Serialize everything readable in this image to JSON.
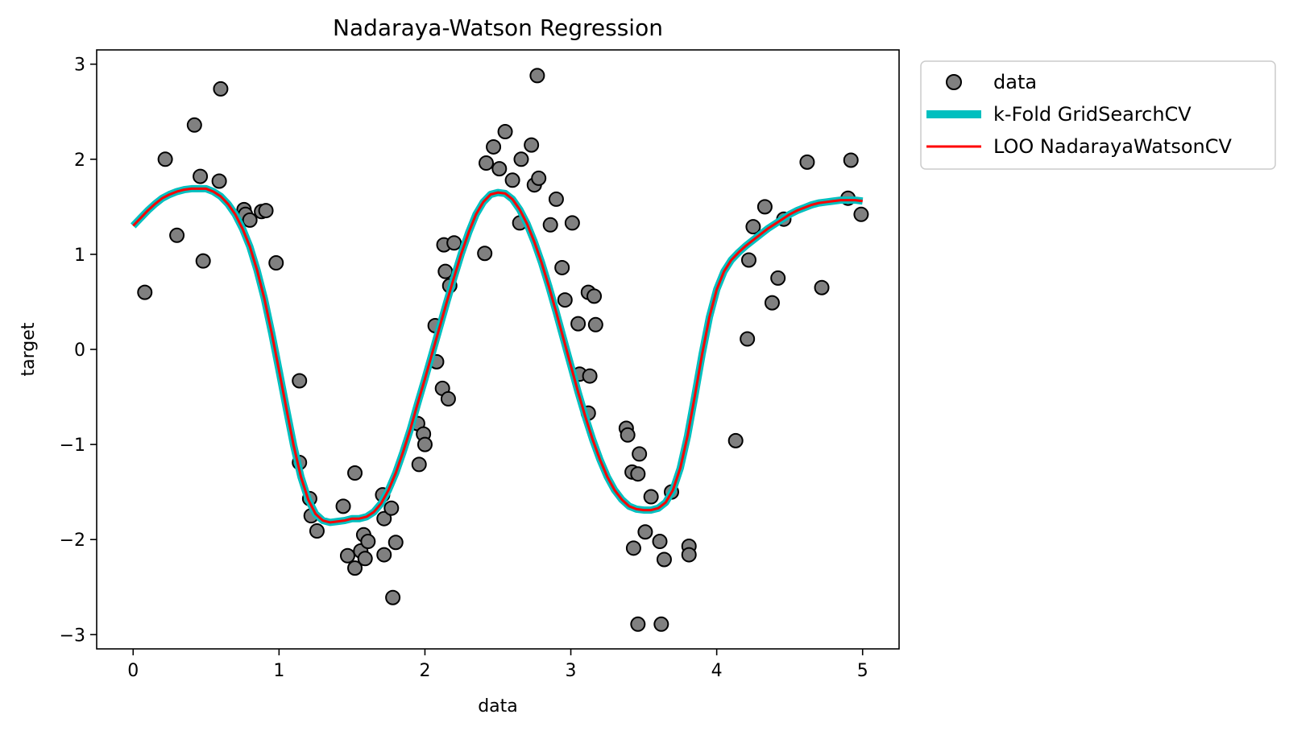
{
  "chart_data": {
    "type": "scatter",
    "title": "Nadaraya-Watson Regression",
    "xlabel": "data",
    "ylabel": "target",
    "xlim": [
      -0.25,
      5.25
    ],
    "ylim": [
      -3.15,
      3.15
    ],
    "xticks": [
      0,
      1,
      2,
      3,
      4,
      5
    ],
    "yticks": [
      -3,
      -2,
      -1,
      0,
      1,
      2,
      3
    ],
    "xtick_labels": [
      "0",
      "1",
      "2",
      "3",
      "4",
      "5"
    ],
    "ytick_labels": [
      "−3",
      "−2",
      "−1",
      "0",
      "1",
      "2",
      "3"
    ],
    "grid": false,
    "legend_placement": "outside-upper-right",
    "series": [
      {
        "name": "data",
        "kind": "scatter",
        "color": "#808080",
        "edge_color": "#000000",
        "x": [
          0.08,
          0.22,
          0.3,
          0.42,
          0.46,
          0.48,
          0.59,
          0.6,
          0.76,
          0.77,
          0.8,
          0.88,
          0.91,
          0.98,
          1.14,
          1.14,
          1.21,
          1.22,
          1.26,
          1.44,
          1.47,
          1.52,
          1.52,
          1.56,
          1.58,
          1.59,
          1.61,
          1.71,
          1.72,
          1.72,
          1.77,
          1.78,
          1.8,
          1.95,
          1.96,
          1.99,
          2.0,
          2.07,
          2.08,
          2.12,
          2.13,
          2.14,
          2.16,
          2.17,
          2.2,
          2.41,
          2.42,
          2.47,
          2.51,
          2.55,
          2.6,
          2.65,
          2.66,
          2.73,
          2.75,
          2.77,
          2.78,
          2.86,
          2.9,
          2.94,
          2.96,
          3.01,
          3.05,
          3.06,
          3.12,
          3.12,
          3.13,
          3.16,
          3.17,
          3.38,
          3.39,
          3.42,
          3.43,
          3.46,
          3.46,
          3.47,
          3.51,
          3.55,
          3.61,
          3.62,
          3.64,
          3.69,
          3.81,
          3.81,
          4.13,
          4.21,
          4.22,
          4.25,
          4.33,
          4.38,
          4.42,
          4.46,
          4.62,
          4.72,
          4.9,
          4.92,
          4.99
        ],
        "y": [
          0.6,
          2.0,
          1.2,
          2.36,
          1.82,
          0.93,
          1.77,
          2.74,
          1.47,
          1.42,
          1.36,
          1.45,
          1.46,
          0.91,
          -0.33,
          -1.19,
          -1.57,
          -1.75,
          -1.91,
          -1.65,
          -2.17,
          -1.3,
          -2.3,
          -2.12,
          -1.95,
          -2.2,
          -2.02,
          -1.53,
          -2.16,
          -1.78,
          -1.67,
          -2.61,
          -2.03,
          -0.78,
          -1.21,
          -0.89,
          -1.0,
          0.25,
          -0.13,
          -0.41,
          1.1,
          0.82,
          -0.52,
          0.67,
          1.12,
          1.01,
          1.96,
          2.13,
          1.9,
          2.29,
          1.78,
          1.33,
          2.0,
          2.15,
          1.73,
          2.88,
          1.8,
          1.31,
          1.58,
          0.86,
          0.52,
          1.33,
          0.27,
          -0.26,
          0.6,
          -0.67,
          -0.28,
          0.56,
          0.26,
          -0.83,
          -0.9,
          -1.29,
          -2.09,
          -2.89,
          -1.31,
          -1.1,
          -1.92,
          -1.55,
          -2.02,
          -2.89,
          -2.21,
          -1.5,
          -2.07,
          -2.16,
          -0.96,
          0.11,
          0.94,
          1.29,
          1.5,
          0.49,
          0.75,
          1.37,
          1.97,
          0.65,
          1.59,
          1.99,
          1.42
        ]
      },
      {
        "name": "k-Fold GridSearchCV",
        "kind": "line",
        "color": "#00bfbf",
        "x": [
          0,
          0.05,
          0.1,
          0.15,
          0.2,
          0.25,
          0.3,
          0.35,
          0.4,
          0.45,
          0.5,
          0.55,
          0.6,
          0.65,
          0.7,
          0.75,
          0.8,
          0.85,
          0.9,
          0.95,
          1.0,
          1.05,
          1.1,
          1.15,
          1.2,
          1.25,
          1.3,
          1.35,
          1.4,
          1.45,
          1.5,
          1.55,
          1.6,
          1.65,
          1.7,
          1.75,
          1.8,
          1.85,
          1.9,
          1.95,
          2.0,
          2.05,
          2.1,
          2.15,
          2.2,
          2.25,
          2.3,
          2.35,
          2.4,
          2.45,
          2.5,
          2.55,
          2.6,
          2.65,
          2.7,
          2.75,
          2.8,
          2.85,
          2.9,
          2.95,
          3.0,
          3.05,
          3.1,
          3.15,
          3.2,
          3.25,
          3.3,
          3.35,
          3.4,
          3.45,
          3.5,
          3.55,
          3.6,
          3.65,
          3.7,
          3.75,
          3.8,
          3.85,
          3.9,
          3.95,
          4.0,
          4.05,
          4.1,
          4.15,
          4.2,
          4.25,
          4.3,
          4.35,
          4.4,
          4.45,
          4.5,
          4.55,
          4.6,
          4.65,
          4.7,
          4.75,
          4.8,
          4.85,
          4.9,
          4.95,
          5.0
        ],
        "y": [
          1.3,
          1.38,
          1.46,
          1.53,
          1.59,
          1.63,
          1.66,
          1.68,
          1.69,
          1.69,
          1.69,
          1.66,
          1.61,
          1.53,
          1.42,
          1.27,
          1.08,
          0.83,
          0.53,
          0.17,
          -0.22,
          -0.62,
          -1.01,
          -1.34,
          -1.58,
          -1.73,
          -1.8,
          -1.82,
          -1.81,
          -1.8,
          -1.78,
          -1.78,
          -1.76,
          -1.71,
          -1.62,
          -1.48,
          -1.3,
          -1.08,
          -0.84,
          -0.57,
          -0.31,
          -0.04,
          0.23,
          0.5,
          0.76,
          1.01,
          1.23,
          1.42,
          1.55,
          1.63,
          1.65,
          1.64,
          1.58,
          1.47,
          1.32,
          1.13,
          0.91,
          0.66,
          0.39,
          0.11,
          -0.17,
          -0.45,
          -0.71,
          -0.95,
          -1.16,
          -1.34,
          -1.48,
          -1.58,
          -1.65,
          -1.68,
          -1.69,
          -1.69,
          -1.67,
          -1.61,
          -1.48,
          -1.25,
          -0.91,
          -0.49,
          -0.05,
          0.34,
          0.63,
          0.82,
          0.94,
          1.02,
          1.09,
          1.15,
          1.21,
          1.27,
          1.32,
          1.37,
          1.42,
          1.46,
          1.49,
          1.52,
          1.54,
          1.55,
          1.56,
          1.57,
          1.57,
          1.57,
          1.56
        ]
      },
      {
        "name": "LOO NadarayaWatsonCV",
        "kind": "line",
        "color": "#ff0000",
        "x": [
          0,
          0.05,
          0.1,
          0.15,
          0.2,
          0.25,
          0.3,
          0.35,
          0.4,
          0.45,
          0.5,
          0.55,
          0.6,
          0.65,
          0.7,
          0.75,
          0.8,
          0.85,
          0.9,
          0.95,
          1.0,
          1.05,
          1.1,
          1.15,
          1.2,
          1.25,
          1.3,
          1.35,
          1.4,
          1.45,
          1.5,
          1.55,
          1.6,
          1.65,
          1.7,
          1.75,
          1.8,
          1.85,
          1.9,
          1.95,
          2.0,
          2.05,
          2.1,
          2.15,
          2.2,
          2.25,
          2.3,
          2.35,
          2.4,
          2.45,
          2.5,
          2.55,
          2.6,
          2.65,
          2.7,
          2.75,
          2.8,
          2.85,
          2.9,
          2.95,
          3.0,
          3.05,
          3.1,
          3.15,
          3.2,
          3.25,
          3.3,
          3.35,
          3.4,
          3.45,
          3.5,
          3.55,
          3.6,
          3.65,
          3.7,
          3.75,
          3.8,
          3.85,
          3.9,
          3.95,
          4.0,
          4.05,
          4.1,
          4.15,
          4.2,
          4.25,
          4.3,
          4.35,
          4.4,
          4.45,
          4.5,
          4.55,
          4.6,
          4.65,
          4.7,
          4.75,
          4.8,
          4.85,
          4.9,
          4.95,
          5.0
        ],
        "y": [
          1.3,
          1.38,
          1.46,
          1.53,
          1.59,
          1.63,
          1.66,
          1.68,
          1.69,
          1.69,
          1.69,
          1.66,
          1.61,
          1.53,
          1.42,
          1.27,
          1.08,
          0.83,
          0.53,
          0.17,
          -0.22,
          -0.62,
          -1.01,
          -1.34,
          -1.58,
          -1.73,
          -1.8,
          -1.82,
          -1.81,
          -1.8,
          -1.78,
          -1.78,
          -1.76,
          -1.71,
          -1.62,
          -1.48,
          -1.3,
          -1.08,
          -0.84,
          -0.57,
          -0.31,
          -0.04,
          0.23,
          0.5,
          0.76,
          1.01,
          1.23,
          1.42,
          1.55,
          1.63,
          1.65,
          1.64,
          1.58,
          1.47,
          1.32,
          1.13,
          0.91,
          0.66,
          0.39,
          0.11,
          -0.17,
          -0.45,
          -0.71,
          -0.95,
          -1.16,
          -1.34,
          -1.48,
          -1.58,
          -1.65,
          -1.68,
          -1.69,
          -1.69,
          -1.67,
          -1.61,
          -1.48,
          -1.25,
          -0.91,
          -0.49,
          -0.05,
          0.34,
          0.63,
          0.82,
          0.94,
          1.02,
          1.09,
          1.15,
          1.21,
          1.27,
          1.32,
          1.37,
          1.42,
          1.46,
          1.49,
          1.52,
          1.54,
          1.55,
          1.56,
          1.57,
          1.57,
          1.57,
          1.56
        ]
      }
    ]
  }
}
